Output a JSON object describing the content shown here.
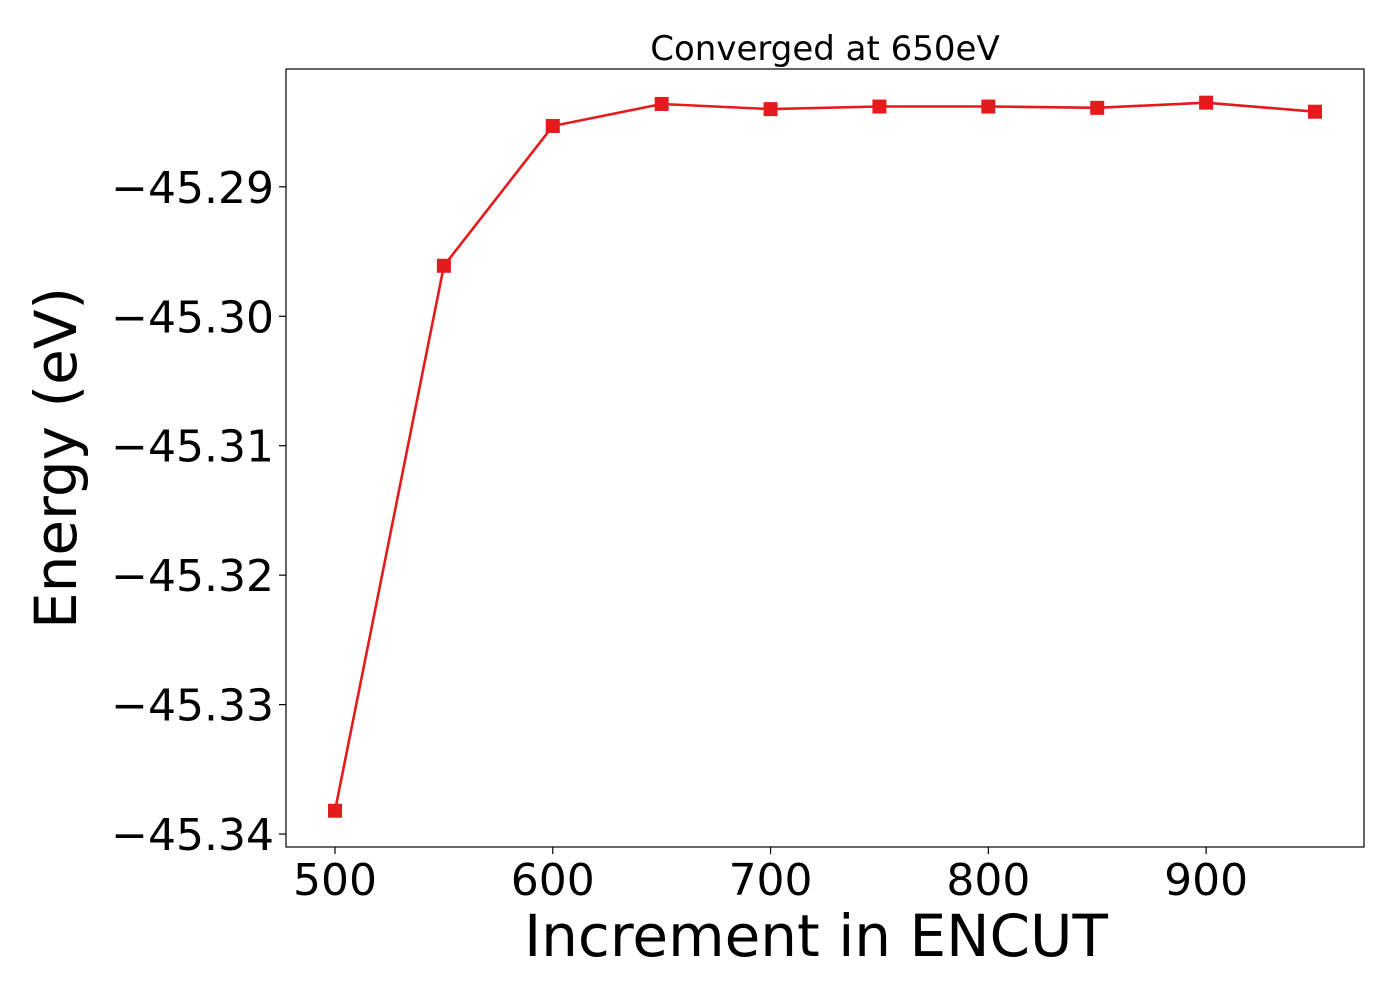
{
  "chart_data": {
    "type": "line",
    "title": "Converged at 650eV",
    "xlabel": "Increment in ENCUT",
    "ylabel": "Energy (eV)",
    "x": [
      500,
      550,
      600,
      650,
      700,
      750,
      800,
      850,
      900,
      950
    ],
    "series": [
      {
        "values": [
          -45.3382,
          -45.2961,
          -45.2853,
          -45.2836,
          -45.284,
          -45.2838,
          -45.2838,
          -45.2839,
          -45.2835,
          -45.2842
        ],
        "color": "#e41a1c",
        "marker": "square"
      }
    ],
    "xlim": [
      477.5,
      972.5
    ],
    "ylim": [
      -45.341,
      -45.2809
    ],
    "xticks": [
      500,
      600,
      700,
      800,
      900
    ],
    "xtick_labels": [
      "500",
      "600",
      "700",
      "800",
      "900"
    ],
    "yticks": [
      -45.29,
      -45.3,
      -45.31,
      -45.32,
      -45.33,
      -45.34
    ],
    "ytick_labels": [
      "−45.29",
      "−45.30",
      "−45.31",
      "−45.32",
      "−45.33",
      "−45.34"
    ],
    "grid": false,
    "legend": "none"
  }
}
